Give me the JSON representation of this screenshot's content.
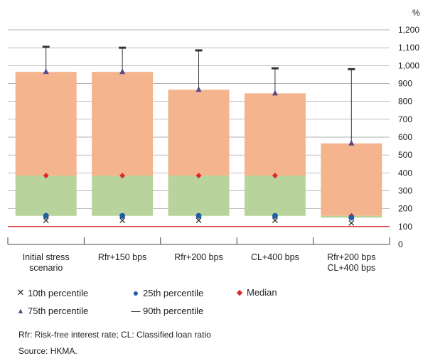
{
  "chart_data": {
    "type": "box",
    "unit": "%",
    "y_ticks": [
      "0",
      "100",
      "200",
      "300",
      "400",
      "500",
      "600",
      "700",
      "800",
      "900",
      "1,000",
      "1,100",
      "1,200"
    ],
    "ylim": [
      0,
      1200
    ],
    "reference_line": 100,
    "categories": [
      [
        "Initial stress",
        "scenario"
      ],
      [
        "Rfr+150 bps"
      ],
      [
        "Rfr+200 bps"
      ],
      [
        "CL+400 bps"
      ],
      [
        "Rfr+200 bps",
        "CL+400 bps"
      ]
    ],
    "series": [
      {
        "name": "10th percentile",
        "values": [
          135,
          135,
          135,
          135,
          120
        ]
      },
      {
        "name": "25th percentile",
        "values": [
          160,
          160,
          160,
          160,
          150
        ]
      },
      {
        "name": "Median",
        "values": [
          385,
          385,
          385,
          385,
          160
        ]
      },
      {
        "name": "75th percentile",
        "values": [
          965,
          965,
          865,
          845,
          565
        ]
      },
      {
        "name": "90th percentile",
        "values": [
          1105,
          1100,
          1085,
          985,
          980
        ]
      }
    ],
    "colors": {
      "lower_box": "#b8d39b",
      "upper_box": "#f4b48d",
      "marker_25th": "#1f5fa8",
      "marker_median": "#e0262b",
      "marker_75th": "#5a4a8a",
      "whisker": "#333333",
      "reference_line": "#e0262b"
    }
  },
  "legend": {
    "p10": "10th percentile",
    "p25": "25th percentile",
    "median": "Median",
    "p75": "75th percentile",
    "p90": "90th percentile"
  },
  "notes": {
    "abbrev": "Rfr: Risk-free interest rate; CL: Classified loan ratio",
    "source": "Source: HKMA."
  }
}
